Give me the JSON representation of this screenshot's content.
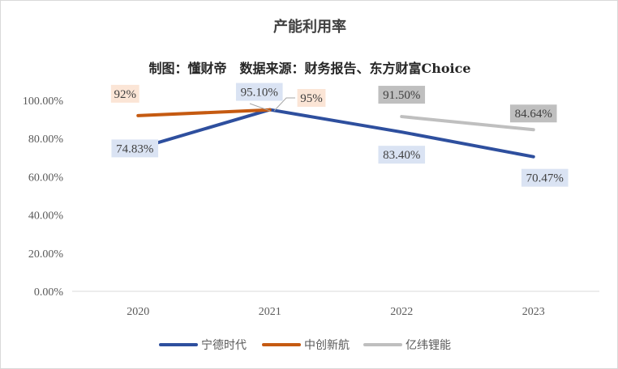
{
  "chart_data": {
    "type": "line",
    "title": "产能利用率",
    "subtitle": "制图：懂财帝　数据来源：财务报告、东方财富Choice",
    "categories": [
      "2020",
      "2021",
      "2022",
      "2023"
    ],
    "ylim": [
      0,
      100
    ],
    "yticks": [
      "0.00%",
      "20.00%",
      "40.00%",
      "60.00%",
      "80.00%",
      "100.00%"
    ],
    "grid": false,
    "legend_position": "bottom",
    "series": [
      {
        "name": "宁德时代",
        "color": "#2E4F9E",
        "values": [
          74.83,
          95.1,
          83.4,
          70.47
        ],
        "labels": [
          "74.83%",
          "95.10%",
          "83.40%",
          "70.47%"
        ],
        "label_bg": "#DAE3F3"
      },
      {
        "name": "中创新航",
        "color": "#C55A11",
        "values": [
          92,
          95,
          null,
          null
        ],
        "labels": [
          "92%",
          "95%",
          "",
          ""
        ],
        "label_bg": "#FBE5D6"
      },
      {
        "name": "亿纬锂能",
        "color": "#BFBFBF",
        "values": [
          null,
          null,
          91.5,
          84.64
        ],
        "labels": [
          "",
          "",
          "91.50%",
          "84.64%"
        ],
        "label_bg": "#BFBFBF"
      }
    ]
  }
}
